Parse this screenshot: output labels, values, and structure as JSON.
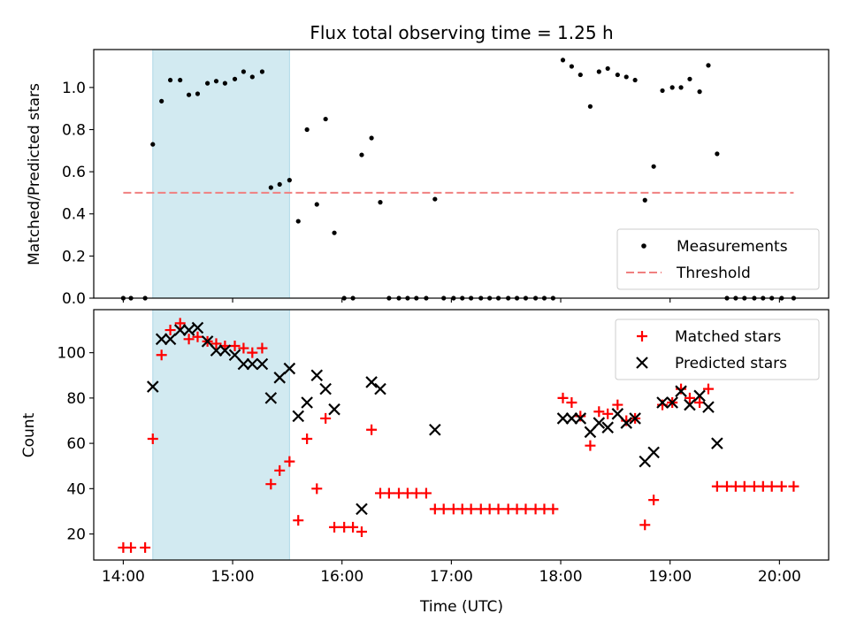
{
  "figure_title": "Flux total observing time = 1.25 h",
  "chart_data": [
    {
      "type": "scatter",
      "xlabel": "",
      "ylabel": "Matched/Predicted stars",
      "xlim": [
        13.73,
        20.45
      ],
      "ylim": [
        0,
        1.18
      ],
      "yticks": [
        0.0,
        0.2,
        0.4,
        0.6,
        0.8,
        1.0
      ],
      "ytick_labels": [
        "0.0",
        "0.2",
        "0.4",
        "0.6",
        "0.8",
        "1.0"
      ],
      "highlight_band": [
        14.27,
        15.52
      ],
      "colors": {
        "band": "#add8e6",
        "measurements": "#000000",
        "threshold": "#f08080"
      },
      "legend": {
        "placement": "lower-right",
        "entries": [
          "Measurements",
          "Threshold"
        ]
      },
      "threshold": {
        "name": "Threshold",
        "value": 0.5,
        "x_range": [
          14.0,
          20.13
        ]
      },
      "series": [
        {
          "name": "Measurements",
          "x": [
            14.0,
            14.07,
            14.2,
            14.27,
            14.35,
            14.43,
            14.52,
            14.6,
            14.68,
            14.77,
            14.85,
            14.93,
            15.02,
            15.1,
            15.18,
            15.27,
            15.35,
            15.43,
            15.52,
            15.6,
            15.68,
            15.77,
            15.85,
            15.93,
            16.02,
            16.1,
            16.18,
            16.27,
            16.35,
            16.43,
            16.52,
            16.6,
            16.68,
            16.77,
            16.85,
            16.93,
            17.02,
            17.1,
            17.18,
            17.27,
            17.35,
            17.43,
            17.52,
            17.6,
            17.68,
            17.77,
            17.85,
            17.93,
            18.02,
            18.1,
            18.18,
            18.27,
            18.35,
            18.43,
            18.52,
            18.6,
            18.68,
            18.77,
            18.85,
            18.93,
            19.02,
            19.1,
            19.18,
            19.27,
            19.35,
            19.43,
            19.52,
            19.6,
            19.68,
            19.77,
            19.85,
            19.93,
            20.02,
            20.13
          ],
          "y": [
            0,
            0,
            0,
            0.73,
            0.935,
            1.035,
            1.035,
            0.965,
            0.97,
            1.02,
            1.03,
            1.02,
            1.04,
            1.075,
            1.05,
            1.075,
            0.525,
            0.54,
            0.56,
            0.365,
            0.8,
            0.445,
            0.85,
            0.31,
            0,
            0,
            0.68,
            0.76,
            0.455,
            0,
            0,
            0,
            0,
            0,
            0.47,
            0,
            0,
            0,
            0,
            0,
            0,
            0,
            0,
            0,
            0,
            0,
            0,
            0,
            1.13,
            1.1,
            1.06,
            0.91,
            1.075,
            1.09,
            1.06,
            1.05,
            1.035,
            0.465,
            0.625,
            0.985,
            1.0,
            1.0,
            1.04,
            0.98,
            1.105,
            0.685,
            0,
            0,
            0,
            0,
            0,
            0,
            0,
            0
          ]
        }
      ]
    },
    {
      "type": "scatter",
      "xlabel": "Time (UTC)",
      "ylabel": "Count",
      "xlim": [
        13.73,
        20.45
      ],
      "ylim": [
        8.5,
        119
      ],
      "yticks": [
        20,
        40,
        60,
        80,
        100
      ],
      "ytick_labels": [
        "20",
        "40",
        "60",
        "80",
        "100"
      ],
      "xticks": [
        14,
        15,
        16,
        17,
        18,
        19,
        20
      ],
      "xtick_labels": [
        "14:00",
        "15:00",
        "16:00",
        "17:00",
        "18:00",
        "19:00",
        "20:00"
      ],
      "highlight_band": [
        14.27,
        15.52
      ],
      "colors": {
        "band": "#add8e6",
        "matched": "#ff0000",
        "predicted": "#000000"
      },
      "legend": {
        "placement": "top-right",
        "entries": [
          "Matched stars",
          "Predicted stars"
        ]
      },
      "series": [
        {
          "name": "Matched stars",
          "x": [
            14.0,
            14.07,
            14.2,
            14.27,
            14.35,
            14.43,
            14.52,
            14.6,
            14.68,
            14.77,
            14.85,
            14.93,
            15.02,
            15.1,
            15.18,
            15.27,
            15.35,
            15.43,
            15.52,
            15.6,
            15.68,
            15.77,
            15.85,
            15.93,
            16.02,
            16.1,
            16.18,
            16.27,
            16.35,
            16.43,
            16.52,
            16.6,
            16.68,
            16.77,
            16.85,
            16.93,
            17.02,
            17.1,
            17.18,
            17.27,
            17.35,
            17.43,
            17.52,
            17.6,
            17.68,
            17.77,
            17.85,
            17.93,
            18.02,
            18.1,
            18.18,
            18.27,
            18.35,
            18.43,
            18.52,
            18.6,
            18.68,
            18.77,
            18.85,
            18.93,
            19.02,
            19.1,
            19.18,
            19.27,
            19.35,
            19.43,
            19.52,
            19.6,
            19.68,
            19.77,
            19.85,
            19.93,
            20.02,
            20.13
          ],
          "y": [
            14,
            14,
            14,
            62,
            99,
            110,
            113,
            106,
            107,
            105,
            104,
            103,
            103,
            102,
            100,
            102,
            42,
            48,
            52,
            26,
            62,
            40,
            71,
            23,
            23,
            23,
            21,
            66,
            38,
            38,
            38,
            38,
            38,
            38,
            31,
            31,
            31,
            31,
            31,
            31,
            31,
            31,
            31,
            31,
            31,
            31,
            31,
            31,
            80,
            78,
            72,
            59,
            74,
            73,
            77,
            70,
            71,
            24,
            35,
            77,
            78,
            84,
            80,
            78,
            84,
            41,
            41,
            41,
            41,
            41,
            41,
            41,
            41,
            41
          ]
        },
        {
          "name": "Predicted stars",
          "x": [
            14.27,
            14.35,
            14.43,
            14.52,
            14.6,
            14.68,
            14.77,
            14.85,
            14.93,
            15.02,
            15.1,
            15.18,
            15.27,
            15.35,
            15.43,
            15.52,
            15.6,
            15.68,
            15.77,
            15.85,
            15.93,
            16.18,
            16.27,
            16.35,
            16.85,
            18.02,
            18.1,
            18.18,
            18.27,
            18.35,
            18.43,
            18.52,
            18.6,
            18.68,
            18.77,
            18.85,
            18.93,
            19.02,
            19.1,
            19.18,
            19.27,
            19.35,
            19.43
          ],
          "y": [
            85,
            106,
            106,
            110,
            110,
            111,
            105,
            101,
            101,
            99,
            95,
            95,
            95,
            80,
            89,
            93,
            72,
            78,
            90,
            84,
            75,
            31,
            87,
            84,
            66,
            71,
            71,
            71,
            65,
            69,
            67,
            73,
            69,
            71,
            52,
            56,
            78,
            78,
            83,
            77,
            81,
            76,
            60
          ]
        }
      ]
    }
  ]
}
